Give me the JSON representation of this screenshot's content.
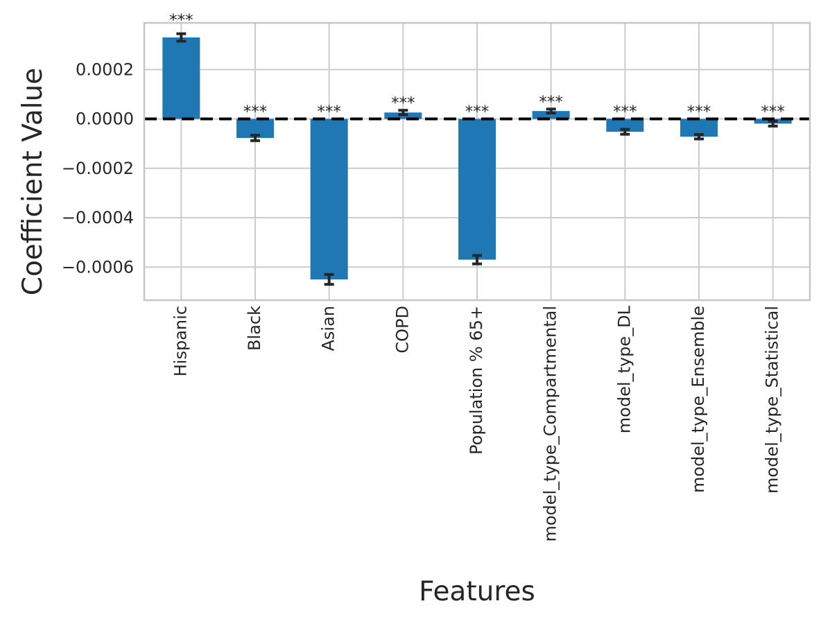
{
  "figure": {
    "background": "#ffffff"
  },
  "chart_data": {
    "type": "bar",
    "title": "",
    "xlabel": "Features",
    "ylabel": "Coefficient Value",
    "categories": [
      "Hispanic",
      "Black",
      "Asian",
      "COPD",
      "Population % 65+",
      "model_type_Compartmental",
      "model_type_DL",
      "model_type_Ensemble",
      "model_type_Statistical"
    ],
    "values": [
      0.00033,
      -7.7e-05,
      -0.00065,
      2.6e-05,
      -0.00057,
      3.2e-05,
      -5.2e-05,
      -7.2e-05,
      -1.9e-05
    ],
    "errors": [
      1.5e-05,
      1.1e-05,
      2e-05,
      9e-06,
      1.7e-05,
      8e-06,
      1e-05,
      9e-06,
      1e-05
    ],
    "significance": [
      "***",
      "***",
      "***",
      "***",
      "***",
      "***",
      "***",
      "***",
      "***"
    ],
    "yticks": [
      0.0002,
      0.0,
      -0.0002,
      -0.0004,
      -0.0006
    ],
    "ytick_labels": [
      "0.0002",
      "0.0000",
      "−0.0002",
      "−0.0004",
      "−0.0006"
    ],
    "ylim": [
      -0.000734,
      0.000389
    ],
    "grid": true,
    "legend": "none",
    "zero_line_style": "dashed",
    "bar_color": "#1f77b4",
    "error_color": "#262626",
    "zero_line_color": "#000000",
    "grid_color": "#cccccc",
    "spine_color": "#c6c6c6",
    "text_color": "#262626"
  }
}
